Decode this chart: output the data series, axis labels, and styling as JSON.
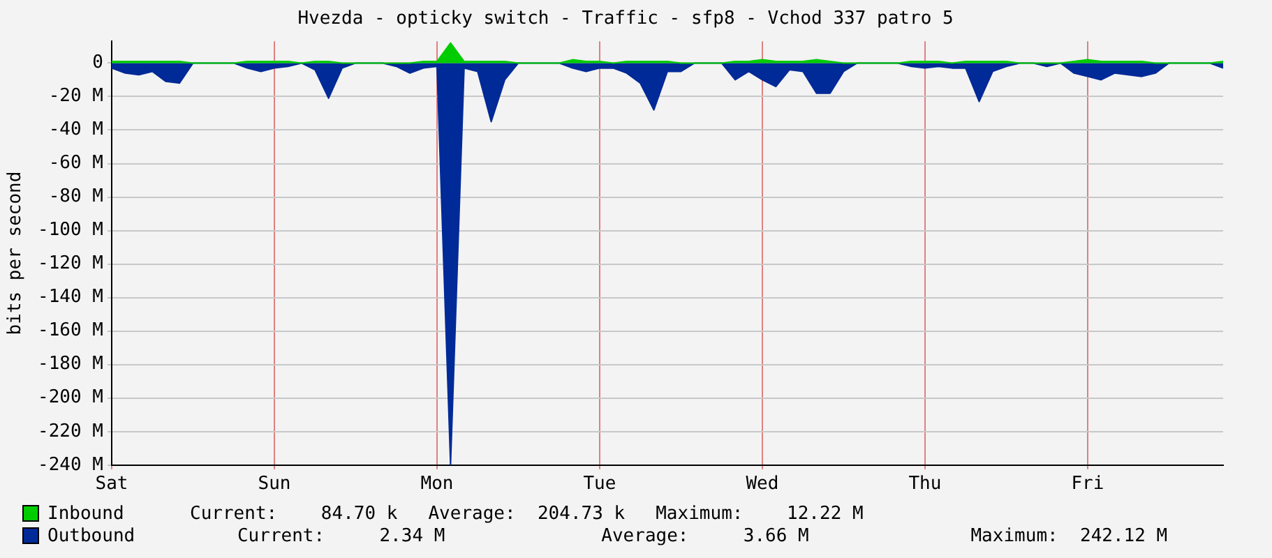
{
  "chart_data": {
    "type": "area",
    "title": "Hvezda - opticky switch - Traffic - sfp8 - Vchod 337 patro 5",
    "ylabel": "bits per second",
    "categories": [
      "Sat",
      null,
      null,
      null,
      null,
      null,
      null,
      null,
      null,
      null,
      null,
      null,
      "Sun",
      null,
      null,
      null,
      null,
      null,
      null,
      null,
      null,
      null,
      null,
      null,
      "Mon",
      null,
      null,
      null,
      null,
      null,
      null,
      null,
      null,
      null,
      null,
      null,
      "Tue",
      null,
      null,
      null,
      null,
      null,
      null,
      null,
      null,
      null,
      null,
      null,
      "Wed",
      null,
      null,
      null,
      null,
      null,
      null,
      null,
      null,
      null,
      null,
      null,
      "Thu",
      null,
      null,
      null,
      null,
      null,
      null,
      null,
      null,
      null,
      null,
      null,
      "Fri",
      null,
      null,
      null,
      null,
      null,
      null,
      null,
      null,
      null,
      null
    ],
    "ylim": [
      -240,
      13
    ],
    "yticks": [
      0,
      {
        "value": -20,
        "label": "-20 M"
      },
      {
        "value": -40,
        "label": "-40 M"
      },
      {
        "value": -60,
        "label": "-60 M"
      },
      {
        "value": -80,
        "label": "-80 M"
      },
      {
        "value": -100,
        "label": "-100 M"
      },
      {
        "value": -120,
        "label": "-120 M"
      },
      {
        "value": -140,
        "label": "-140 M"
      },
      {
        "value": -160,
        "label": "-160 M"
      },
      {
        "value": -180,
        "label": "-180 M"
      },
      {
        "value": -200,
        "label": "-200 M"
      },
      {
        "value": -220,
        "label": "-220 M"
      },
      {
        "value": -240,
        "label": "-240 M"
      }
    ],
    "series": [
      {
        "name": "Inbound",
        "color": "#00cc00",
        "values": [
          1,
          1,
          1,
          1,
          1,
          1,
          0,
          0,
          0,
          0,
          1,
          1,
          1,
          1,
          0,
          1,
          1,
          0,
          0,
          0,
          0,
          0,
          0,
          1,
          1,
          12,
          1,
          1,
          1,
          1,
          0,
          0,
          0,
          0,
          2,
          1,
          1,
          0,
          1,
          1,
          1,
          1,
          0,
          0,
          0,
          0,
          1,
          1,
          2,
          1,
          1,
          1,
          2,
          1,
          0,
          0,
          0,
          0,
          0,
          1,
          1,
          1,
          0,
          1,
          1,
          1,
          1,
          0,
          0,
          0,
          0,
          1,
          2,
          1,
          1,
          1,
          1,
          0,
          0,
          0,
          0,
          0,
          1
        ]
      },
      {
        "name": "Outbound",
        "color": "#002a97",
        "values": [
          -3,
          -6,
          -7,
          -5,
          -11,
          -12,
          0,
          0,
          0,
          0,
          -3,
          -5,
          -3,
          -2,
          0,
          -4,
          -21,
          -3,
          0,
          0,
          0,
          -2,
          -6,
          -3,
          -2,
          -240,
          -3,
          -5,
          -35,
          -10,
          0,
          0,
          0,
          0,
          -3,
          -5,
          -3,
          -3,
          -6,
          -12,
          -28,
          -5,
          -5,
          0,
          0,
          0,
          -10,
          -5,
          -10,
          -14,
          -4,
          -5,
          -18,
          -18,
          -5,
          0,
          0,
          0,
          0,
          -2,
          -3,
          -2,
          -3,
          -3,
          -23,
          -5,
          -2,
          0,
          0,
          -2,
          0,
          -6,
          -8,
          -10,
          -6,
          -7,
          -8,
          -6,
          0,
          0,
          0,
          0,
          -3
        ]
      }
    ],
    "grid": true,
    "legend": "bottom",
    "annotations": [
      "Current:    84.70 k",
      "Average:  204.73 k",
      "Maximum:    12.22 M",
      "Current:     2.34 M",
      "Average:     3.66 M",
      "Maximum:  242.12 M"
    ]
  }
}
